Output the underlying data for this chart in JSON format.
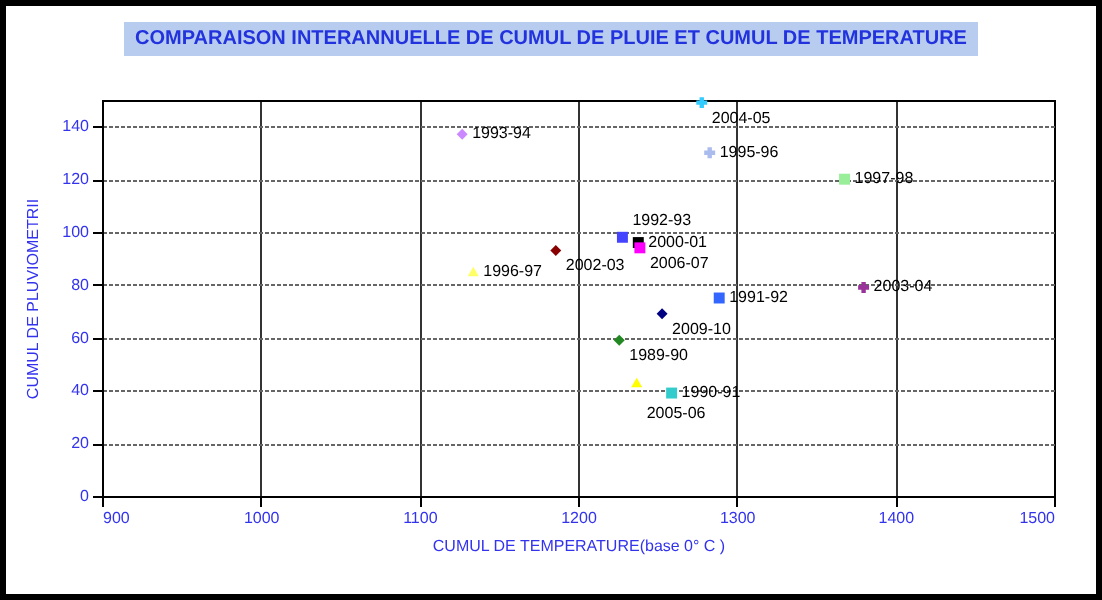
{
  "chart_data": {
    "type": "scatter",
    "title": "COMPARAISON INTERANNUELLE DE CUMUL DE PLUIE ET CUMUL DE TEMPERATURE",
    "xlabel": "CUMUL DE TEMPERATURE(base 0° C )",
    "ylabel": "CUMUL DE PLUVIOMETRII",
    "xlim": [
      900,
      1500
    ],
    "xticks": [
      900,
      1000,
      1100,
      1200,
      1300,
      1400,
      1500
    ],
    "ylim": [
      0,
      150
    ],
    "yticks": [
      0,
      20,
      40,
      60,
      80,
      100,
      120,
      140
    ],
    "grid": true,
    "legend": false,
    "series": [
      {
        "name": "1993-94",
        "color": "#cc88ff",
        "marker": "diamond",
        "x": [
          1127
        ],
        "values": [
          137
        ]
      },
      {
        "name": "2004-05",
        "color": "#33ccff",
        "marker": "cross",
        "x": [
          1278
        ],
        "values": [
          149
        ]
      },
      {
        "name": "1995-96",
        "color": "#aabbee",
        "marker": "cross",
        "x": [
          1283
        ],
        "values": [
          130
        ]
      },
      {
        "name": "1997-98",
        "color": "#99ee99",
        "marker": "square",
        "x": [
          1368
        ],
        "values": [
          120
        ]
      },
      {
        "name": "1992-93",
        "color": "#4444ff",
        "marker": "square",
        "x": [
          1228
        ],
        "values": [
          98
        ]
      },
      {
        "name": "2000-01",
        "color": "#000000",
        "marker": "square",
        "x": [
          1238
        ],
        "values": [
          96
        ]
      },
      {
        "name": "2006-07",
        "color": "#ff00ff",
        "marker": "square",
        "x": [
          1239
        ],
        "values": [
          94
        ]
      },
      {
        "name": "2002-03",
        "color": "#880000",
        "marker": "diamond",
        "x": [
          1186
        ],
        "values": [
          93
        ]
      },
      {
        "name": "1996-97",
        "color": "#ffff66",
        "marker": "triangle",
        "x": [
          1134
        ],
        "values": [
          85
        ]
      },
      {
        "name": "1991-92",
        "color": "#3366ff",
        "marker": "square",
        "x": [
          1289
        ],
        "values": [
          75
        ]
      },
      {
        "name": "2009-10",
        "color": "#000080",
        "marker": "diamond",
        "x": [
          1253
        ],
        "values": [
          69
        ]
      },
      {
        "name": "1989-90",
        "color": "#228822",
        "marker": "diamond",
        "x": [
          1226
        ],
        "values": [
          59
        ]
      },
      {
        "name": "2005-06",
        "color": "#ffff00",
        "marker": "triangle",
        "x": [
          1237
        ],
        "values": [
          43
        ]
      },
      {
        "name": "1990-91",
        "color": "#33cccc",
        "marker": "square",
        "x": [
          1259
        ],
        "values": [
          39
        ]
      },
      {
        "name": "2003-04",
        "color": "#993399",
        "marker": "cross",
        "x": [
          1380
        ],
        "values": [
          79
        ]
      }
    ]
  }
}
